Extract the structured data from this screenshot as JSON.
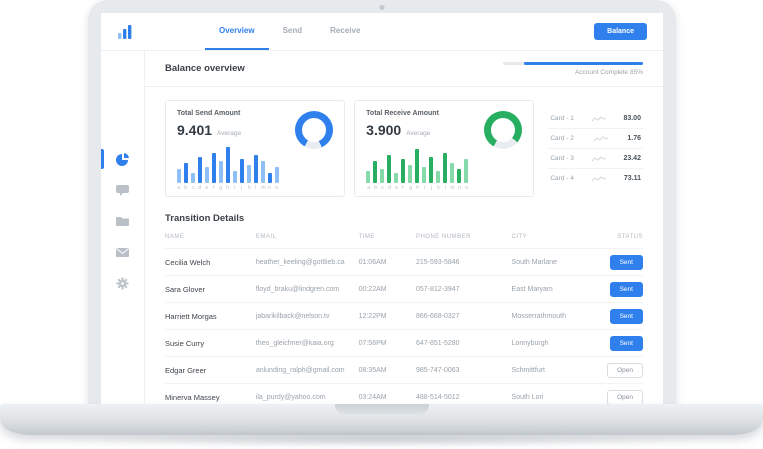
{
  "header": {
    "logo_icon": "bar-chart-logo-icon",
    "tabs": [
      {
        "label": "Overview",
        "active": true
      },
      {
        "label": "Send",
        "active": false
      },
      {
        "label": "Receive",
        "active": false
      }
    ],
    "balance_button": "Balance"
  },
  "overview_bar": {
    "title": "Balance overview",
    "account_complete_label": "Account Complete 85%",
    "progress_percent": 85
  },
  "sidebar": {
    "items": [
      {
        "icon": "dashboard-pie-icon",
        "active": true
      },
      {
        "icon": "chat-bubble-icon",
        "active": false
      },
      {
        "icon": "folder-icon",
        "active": false
      },
      {
        "icon": "envelope-icon",
        "active": false
      },
      {
        "icon": "gear-icon",
        "active": false
      }
    ]
  },
  "chart_data": [
    {
      "type": "bar",
      "title": "Total Send Amount",
      "average": "9.401",
      "average_label": "Average",
      "categories": [
        "a",
        "b",
        "c",
        "d",
        "e",
        "f",
        "g",
        "h",
        "i",
        "j",
        "k",
        "l",
        "m",
        "n",
        "o"
      ],
      "values": [
        14,
        20,
        10,
        26,
        16,
        30,
        22,
        36,
        12,
        24,
        18,
        28,
        22,
        10,
        16
      ],
      "donut_percent": 85,
      "colors": {
        "primary": "#2f80ed",
        "light": "#8ec0f7",
        "track": "#e9edf2"
      }
    },
    {
      "type": "bar",
      "title": "Total Receive Amount",
      "average": "3.900",
      "average_label": "Average",
      "categories": [
        "a",
        "b",
        "c",
        "d",
        "e",
        "f",
        "g",
        "h",
        "i",
        "j",
        "k",
        "l",
        "m",
        "n",
        "o"
      ],
      "values": [
        12,
        22,
        14,
        28,
        10,
        24,
        18,
        34,
        16,
        26,
        12,
        30,
        20,
        14,
        24
      ],
      "donut_percent": 78,
      "colors": {
        "primary": "#27ae60",
        "light": "#86d9a8",
        "track": "#e9edf2"
      }
    }
  ],
  "cards": {
    "items": [
      {
        "label": "Card - 1",
        "value": "83.00"
      },
      {
        "label": "Card - 2",
        "value": "1.76"
      },
      {
        "label": "Card - 3",
        "value": "23.42"
      },
      {
        "label": "Card - 4",
        "value": "73.11"
      }
    ]
  },
  "transactions": {
    "title": "Transition Details",
    "columns": [
      "NAME",
      "EMAIL",
      "TIME",
      "PHONE NUMBER",
      "CITY",
      "STATUS"
    ],
    "rows": [
      {
        "name": "Cecilia Welch",
        "email": "heather_keeling@gottlieb.ca",
        "time": "01:06AM",
        "phone": "215-593-5846",
        "city": "South Marlane",
        "status": "Sent"
      },
      {
        "name": "Sara Glover",
        "email": "floyd_braku@lindgren.com",
        "time": "00:22AM",
        "phone": "057-812-3947",
        "city": "East Maryam",
        "status": "Sent"
      },
      {
        "name": "Harriett Morgas",
        "email": "jabarikilback@nelson.tv",
        "time": "12:22PM",
        "phone": "866-668-0327",
        "city": "Mosserrathmouth",
        "status": "Sent"
      },
      {
        "name": "Susie Curry",
        "email": "theo_gleichner@kaia.org",
        "time": "07:56PM",
        "phone": "647-851-5280",
        "city": "Lonnyburgh",
        "status": "Sent"
      },
      {
        "name": "Edgar Greer",
        "email": "anlunding_ralph@gmail.com",
        "time": "08:35AM",
        "phone": "985-747-0063",
        "city": "Schmittfurt",
        "status": "Open"
      },
      {
        "name": "Minerva Massey",
        "email": "ila_purdy@yahoo.com",
        "time": "03:24AM",
        "phone": "488-514-5012",
        "city": "South Lori",
        "status": "Open"
      }
    ]
  }
}
